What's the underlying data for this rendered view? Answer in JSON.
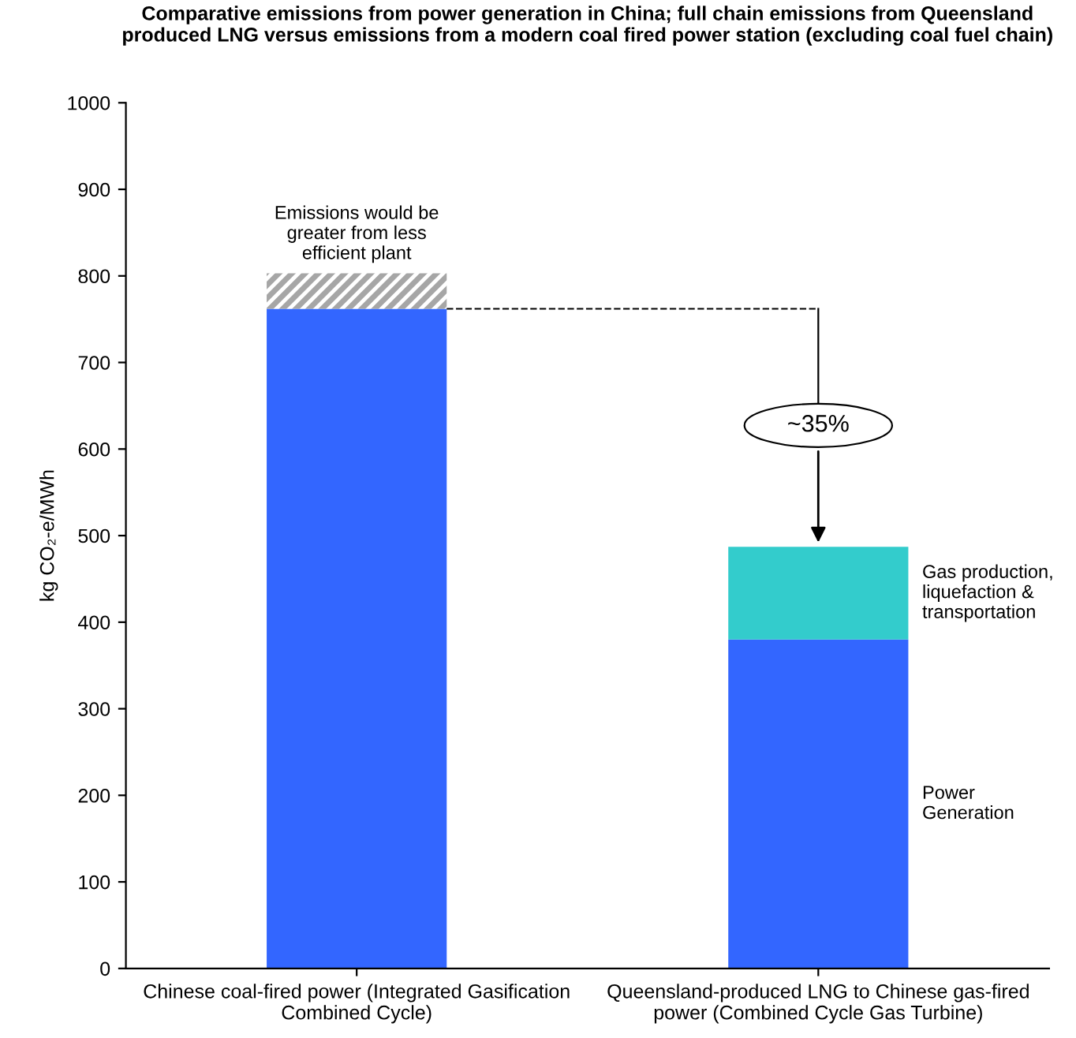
{
  "chart_data": {
    "type": "bar",
    "stacked": true,
    "title": "Comparative emissions from power generation in China; full chain emissions from Queensland\nproduced LNG versus emissions from a modern coal fired power station (excluding coal fuel chain)",
    "ylabel": "kg CO₂-e/MWh",
    "categories": [
      "Chinese coal-fired power (Integrated Gasification\nCombined Cycle)",
      "Queensland-produced LNG to Chinese gas-fired\npower (Combined Cycle Gas Turbine)"
    ],
    "series": [
      {
        "name": "Power\nGeneration",
        "color": "#3366ff",
        "values": [
          762,
          380
        ]
      },
      {
        "name": "Gas production,\nliquefaction &\ntransportation",
        "color": "#33cccc",
        "values": [
          null,
          107
        ]
      },
      {
        "name": "Emissions would be\ngreater from less\nefficient plant",
        "color": "#a6a6a6",
        "values": [
          41,
          null
        ]
      }
    ],
    "ylim": [
      0,
      1000
    ],
    "yticks": [
      0,
      100,
      200,
      300,
      400,
      500,
      600,
      700,
      800,
      900,
      1000
    ],
    "grid": false,
    "legend": false,
    "ref_lines": [
      {
        "axis": "y",
        "value": 762,
        "color": "#000000",
        "line_style": "dashed"
      }
    ],
    "annotations": [
      {
        "text": "~35%",
        "x": "Queensland-produced LNG to Chinese gas-fired\npower (Combined Cycle Gas Turbine)",
        "y": 487
      }
    ]
  }
}
